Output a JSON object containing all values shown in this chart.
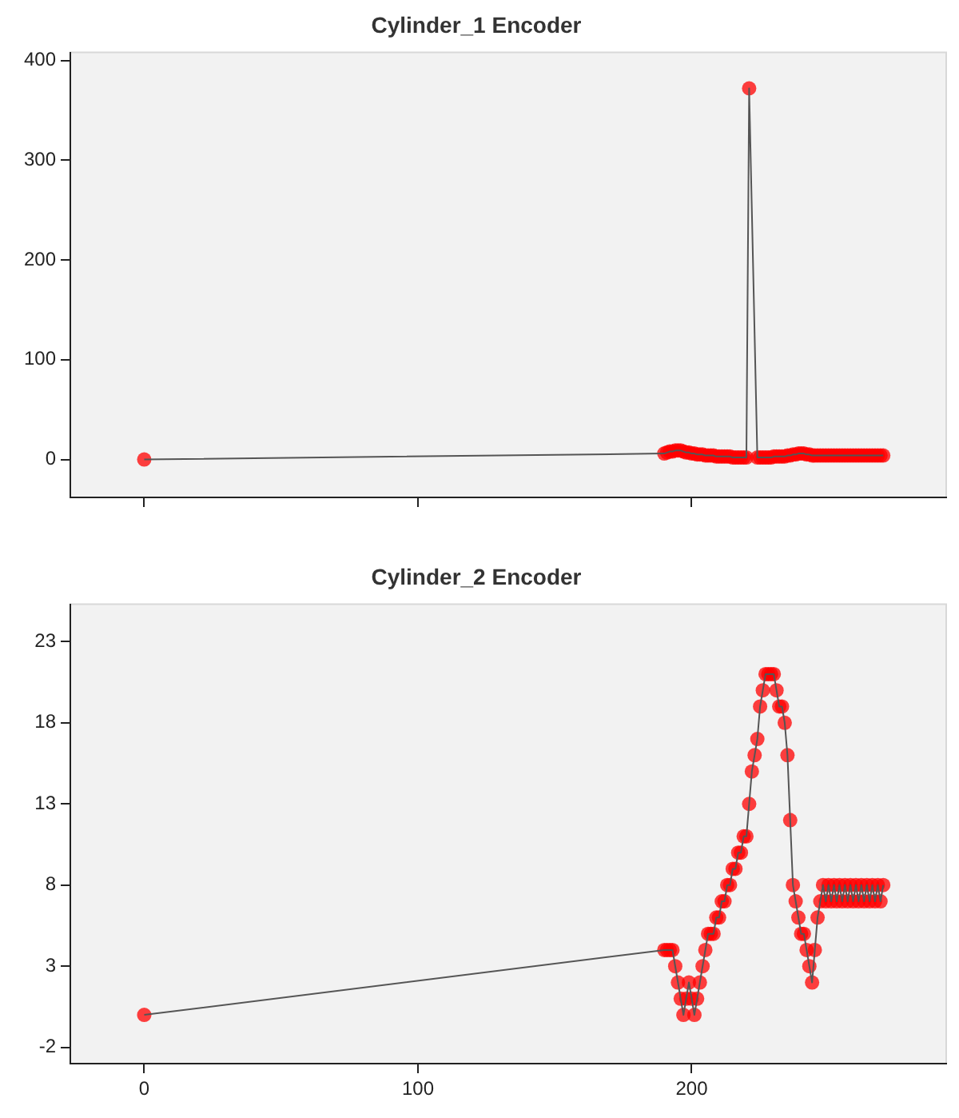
{
  "chart_data": [
    {
      "type": "line",
      "title": "Cylinder_1 Encoder",
      "xlim": [
        -27,
        293
      ],
      "xticks": [
        0,
        100,
        200
      ],
      "ylim": [
        -38,
        408
      ],
      "yticks": [
        0,
        100,
        200,
        300,
        400
      ],
      "tick_labels": "y",
      "grid": false,
      "legend": false,
      "marker": "circle",
      "line_style": "solid",
      "series": [
        {
          "color": "#ff0000",
          "x": [
            0,
            190,
            191,
            192,
            193,
            194,
            195,
            196,
            197,
            198,
            199,
            200,
            201,
            202,
            203,
            204,
            205,
            206,
            207,
            208,
            209,
            210,
            211,
            212,
            213,
            214,
            215,
            216,
            217,
            218,
            219,
            220,
            221,
            224,
            225,
            226,
            227,
            228,
            229,
            230,
            231,
            232,
            233,
            234,
            235,
            236,
            237,
            238,
            239,
            240,
            241,
            242,
            243,
            244,
            245,
            246,
            247,
            248,
            249,
            250,
            251,
            252,
            253,
            254,
            255,
            256,
            257,
            258,
            259,
            260,
            261,
            262,
            263,
            264,
            265,
            266,
            267,
            268,
            269,
            270
          ],
          "values": [
            0,
            6,
            7,
            8,
            8,
            9,
            9,
            9,
            8,
            7,
            7,
            6,
            6,
            5,
            5,
            5,
            4,
            4,
            4,
            4,
            3,
            3,
            3,
            3,
            3,
            3,
            2,
            2,
            2,
            2,
            2,
            2,
            372,
            2,
            2,
            2,
            2,
            2,
            2,
            3,
            3,
            3,
            3,
            3,
            4,
            4,
            5,
            5,
            6,
            6,
            6,
            5,
            5,
            4,
            4,
            4,
            4,
            4,
            4,
            4,
            4,
            4,
            4,
            4,
            4,
            4,
            4,
            4,
            4,
            4,
            4,
            4,
            4,
            4,
            4,
            4,
            4,
            4,
            4,
            4
          ]
        }
      ]
    },
    {
      "type": "line",
      "title": "Cylinder_2 Encoder",
      "xlim": [
        -27,
        293
      ],
      "xticks": [
        0,
        100,
        200
      ],
      "ylim": [
        -3,
        25.3
      ],
      "yticks": [
        -2,
        3,
        8,
        13,
        18,
        23
      ],
      "grid": false,
      "legend": false,
      "marker": "circle",
      "line_style": "solid",
      "series": [
        {
          "color": "#ff0000",
          "x": [
            0,
            190,
            191,
            192,
            193,
            194,
            195,
            196,
            197,
            198,
            199,
            200,
            201,
            202,
            203,
            204,
            205,
            206,
            207,
            208,
            209,
            210,
            211,
            212,
            213,
            214,
            215,
            216,
            217,
            218,
            219,
            220,
            221,
            222,
            223,
            224,
            225,
            226,
            227,
            228,
            229,
            230,
            231,
            232,
            233,
            234,
            235,
            236,
            237,
            238,
            239,
            240,
            241,
            242,
            243,
            244,
            245,
            246,
            247,
            248,
            249,
            250,
            251,
            252,
            253,
            254,
            255,
            256,
            257,
            258,
            259,
            260,
            261,
            262,
            263,
            264,
            265,
            266,
            267,
            268,
            269,
            270
          ],
          "values": [
            0,
            4,
            4,
            4,
            4,
            3,
            2,
            1,
            0,
            1,
            2,
            1,
            0,
            1,
            2,
            3,
            4,
            5,
            5,
            5,
            6,
            6,
            7,
            7,
            8,
            8,
            9,
            9,
            10,
            10,
            11,
            11,
            13,
            15,
            16,
            17,
            19,
            20,
            21,
            21,
            21,
            21,
            20,
            19,
            19,
            18,
            16,
            12,
            8,
            7,
            6,
            5,
            5,
            4,
            3,
            2,
            4,
            6,
            7,
            8,
            7,
            8,
            7,
            8,
            7,
            8,
            7,
            8,
            7,
            8,
            7,
            8,
            7,
            8,
            7,
            8,
            7,
            8,
            7,
            8,
            7,
            8
          ]
        }
      ]
    }
  ]
}
